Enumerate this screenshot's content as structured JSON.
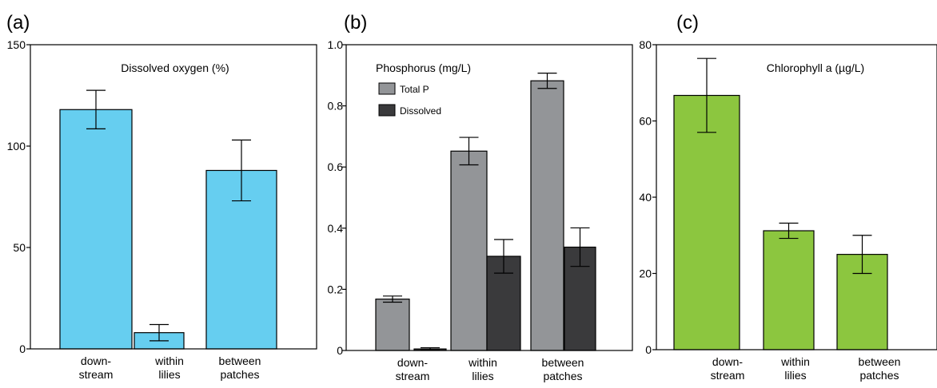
{
  "chart_data": [
    {
      "panel": "(a)",
      "type": "bar",
      "title": "Dissolved oxygen (%)",
      "categories": [
        [
          "down-",
          "stream"
        ],
        [
          "within",
          "lilies"
        ],
        [
          "between",
          "patches"
        ]
      ],
      "series": [
        {
          "values": [
            118,
            8,
            88
          ],
          "errors": [
            9.5,
            4,
            15
          ],
          "color": "#66cef0"
        }
      ],
      "ylim": [
        0,
        150
      ],
      "yticks": [
        0,
        50,
        100,
        150
      ],
      "ytick_labels": [
        "0",
        "50",
        "100",
        "150"
      ]
    },
    {
      "panel": "(b)",
      "type": "bar",
      "title": "Phosphorus (mg/L)",
      "categories": [
        [
          "down-",
          "stream"
        ],
        [
          "within",
          "lilies"
        ],
        [
          "between",
          "patches"
        ]
      ],
      "series": [
        {
          "name": "Total P",
          "values": [
            0.168,
            0.652,
            0.882
          ],
          "errors": [
            0.01,
            0.045,
            0.025
          ],
          "color": "#939598"
        },
        {
          "name": "Dissolved",
          "values": [
            0.005,
            0.308,
            0.338
          ],
          "errors": [
            0.004,
            0.055,
            0.063
          ],
          "color": "#3a3a3c"
        }
      ],
      "ylim": [
        0,
        1.0
      ],
      "yticks": [
        0,
        0.2,
        0.4,
        0.6,
        0.8,
        1.0
      ],
      "ytick_labels": [
        "0",
        "0.2",
        "0.4",
        "0.6",
        "0.8",
        "1.0"
      ],
      "legend_position": "top-left"
    },
    {
      "panel": "(c)",
      "type": "bar",
      "title": "Chlorophyll a (µg/L)",
      "categories": [
        [
          "down-",
          "stream"
        ],
        [
          "within",
          "lilies"
        ],
        [
          "between",
          "patches"
        ]
      ],
      "series": [
        {
          "values": [
            66.7,
            31.2,
            25
          ],
          "errors": [
            9.7,
            2,
            5
          ],
          "color": "#8cc63f"
        }
      ],
      "ylim": [
        0,
        80
      ],
      "yticks": [
        0,
        20,
        40,
        60,
        80
      ],
      "ytick_labels": [
        "0",
        "20",
        "40",
        "60",
        "80"
      ]
    }
  ]
}
